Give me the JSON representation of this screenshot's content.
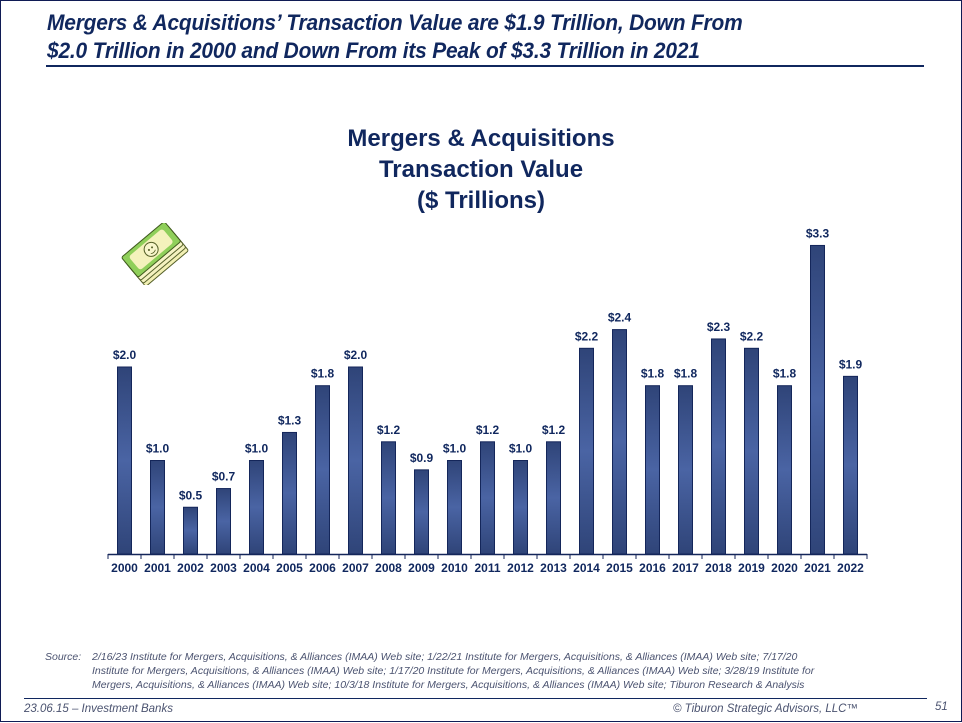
{
  "slide": {
    "headline_line1": "Mergers & Acquisitions’ Transaction Value are $1.9 Trillion, Down From",
    "headline_line2": "$2.0 Trillion in 2000 and Down From its Peak of $3.3 Trillion in 2021",
    "icon": "money-stack-icon"
  },
  "chart_data": {
    "type": "bar",
    "title_lines": [
      "Mergers & Acquisitions",
      "Transaction Value",
      "($ Trillions)"
    ],
    "xlabel": "",
    "ylabel": "",
    "ylim": [
      0,
      3.3
    ],
    "grid": false,
    "legend": "none",
    "categories": [
      "2000",
      "2001",
      "2002",
      "2003",
      "2004",
      "2005",
      "2006",
      "2007",
      "2008",
      "2009",
      "2010",
      "2011",
      "2012",
      "2013",
      "2014",
      "2015",
      "2016",
      "2017",
      "2018",
      "2019",
      "2020",
      "2021",
      "2022"
    ],
    "values": [
      2.0,
      1.0,
      0.5,
      0.7,
      1.0,
      1.3,
      1.8,
      2.0,
      1.2,
      0.9,
      1.0,
      1.2,
      1.0,
      1.2,
      2.2,
      2.4,
      1.8,
      1.8,
      2.3,
      2.2,
      1.8,
      3.3,
      1.9
    ],
    "data_labels": [
      "$2.0",
      "$1.0",
      "$0.5",
      "$0.7",
      "$1.0",
      "$1.3",
      "$1.8",
      "$2.0",
      "$1.2",
      "$0.9",
      "$1.0",
      "$1.2",
      "$1.0",
      "$1.2",
      "$2.2",
      "$2.4",
      "$1.8",
      "$1.8",
      "$2.3",
      "$2.2",
      "$1.8",
      "$3.3",
      "$1.9"
    ],
    "colors": {
      "bar_dark": "#2f4478",
      "bar_light": "#4a64a4",
      "bar_edge": "#14265a",
      "axis": "#14265a",
      "text": "#10275e"
    }
  },
  "source": {
    "label": "Source:",
    "line1": "2/16/23 Institute for Mergers, Acquisitions, & Alliances (IMAA) Web site; 1/22/21 Institute for Mergers, Acquisitions, & Alliances (IMAA) Web site; 7/17/20",
    "line2": "Institute for Mergers, Acquisitions, & Alliances (IMAA) Web site; 1/17/20 Institute for Mergers, Acquisitions, & Alliances (IMAA) Web site; 3/28/19 Institute for",
    "line3": "Mergers, Acquisitions, & Alliances (IMAA) Web site; 10/3/18 Institute for Mergers, Acquisitions, & Alliances (IMAA) Web site; Tiburon Research & Analysis"
  },
  "footer": {
    "left": "23.06.15 – Investment Banks",
    "right": "© Tiburon Strategic Advisors, LLC™",
    "page": "51"
  }
}
